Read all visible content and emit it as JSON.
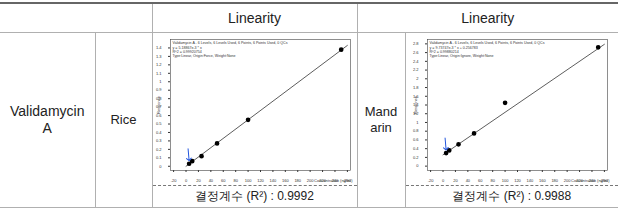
{
  "table": {
    "header": {
      "left": "Linearity",
      "right": "Linearity"
    },
    "compound": "Validamycin A",
    "rows": [
      {
        "matrix": "Rice",
        "r2_text": "결정계수 (R²) : 0.9992"
      },
      {
        "matrix": "Mandarin",
        "r2_text": "결정계수 (R²) : 0.9988"
      }
    ]
  },
  "chart_data": [
    {
      "type": "scatter",
      "annotations": [
        "Validamycin A - 6 Levels, 6 Levels Used, 6 Points, 6 Points Used, 0 QCs",
        "y = 5.18867e-3 * x",
        "R^2 = 0.99920754",
        "Type:Linear, Origin:Force, Weight:None"
      ],
      "x_label": "Concentration (ng/ml)",
      "y_label": "Response",
      "xlim": [
        -25,
        265
      ],
      "xticks": [
        -20,
        0,
        20,
        40,
        60,
        80,
        100,
        120,
        140,
        160,
        180,
        200,
        220,
        240,
        260
      ],
      "ylim": [
        -0.05,
        1.5
      ],
      "yticks": [
        0,
        0.1,
        0.2,
        0.3,
        0.4,
        0.5,
        0.6,
        0.7,
        0.8,
        0.9,
        1,
        1.1,
        1.2,
        1.3,
        1.4
      ],
      "series": [
        {
          "type": "line",
          "color": "#333333",
          "x": [
            0,
            260
          ],
          "values": [
            0,
            1.43
          ]
        },
        {
          "type": "scatter",
          "marker": "circle",
          "color": "#000000",
          "x": [
            5,
            10,
            25,
            50,
            100,
            250
          ],
          "values": [
            0.03,
            0.06,
            0.12,
            0.27,
            0.55,
            1.38
          ]
        }
      ]
    },
    {
      "type": "scatter",
      "annotations": [
        "Validamycin A - 6 Levels, 6 Levels Used, 6 Points, 6 Points Used, 0 QCs",
        "y = 9.73747e-3 * x + 0.256783",
        "R^2 = 0.99880214",
        "Type:Linear, Origin:Ignore, Weight:None"
      ],
      "x_label": "Concentration (ng/ml)",
      "y_label": "Response",
      "xlim": [
        -25,
        265
      ],
      "xticks": [
        -20,
        0,
        20,
        40,
        60,
        80,
        100,
        120,
        140,
        160,
        180,
        200,
        220,
        240,
        260
      ],
      "ylim": [
        -0.1,
        2.9
      ],
      "yticks": [
        0,
        0.2,
        0.4,
        0.6,
        0.8,
        1,
        1.2,
        1.4,
        1.6,
        1.8,
        2,
        2.2,
        2.4,
        2.6,
        2.8
      ],
      "series": [
        {
          "type": "line",
          "color": "#333333",
          "x": [
            0,
            260
          ],
          "values": [
            0.26,
            2.79
          ]
        },
        {
          "type": "scatter",
          "marker": "circle",
          "color": "#000000",
          "x": [
            5,
            10,
            25,
            50,
            100,
            250
          ],
          "values": [
            0.3,
            0.36,
            0.5,
            0.75,
            1.45,
            2.72
          ]
        }
      ]
    }
  ]
}
